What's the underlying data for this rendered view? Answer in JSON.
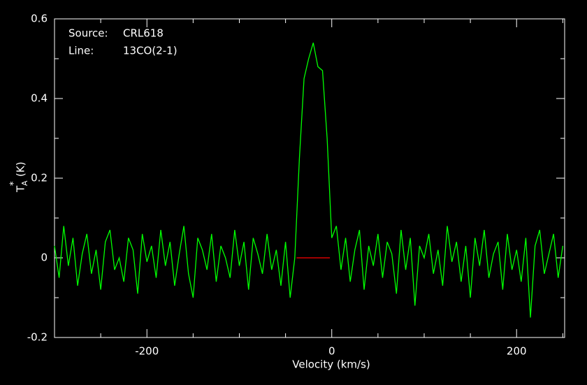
{
  "chart_data": {
    "type": "line",
    "xlabel": "Velocity (km/s)",
    "ylabel": {
      "text": "T",
      "sub": "A",
      "sup": "*",
      "unit": "(K)"
    },
    "annotations": [
      [
        "Source:",
        "CRL618"
      ],
      [
        "Line:",
        "13CO(2-1)"
      ]
    ],
    "xlim": [
      -300,
      252
    ],
    "ylim": [
      -0.2,
      0.6
    ],
    "xticks": [
      -200,
      0,
      200
    ],
    "yticks": [
      -0.2,
      0,
      0.2,
      0.4,
      0.6
    ],
    "xminorticks": [
      -250,
      -150,
      -100,
      -50,
      50,
      100,
      150,
      250
    ],
    "yminorticks": [
      -0.1,
      0.1,
      0.3,
      0.5
    ],
    "series": [
      {
        "color": "#00ff00",
        "x": [
          -300,
          -295,
          -290,
          -285,
          -280,
          -275,
          -270,
          -265,
          -260,
          -255,
          -250,
          -245,
          -240,
          -235,
          -230,
          -225,
          -220,
          -215,
          -210,
          -205,
          -200,
          -195,
          -190,
          -185,
          -180,
          -175,
          -170,
          -165,
          -160,
          -155,
          -150,
          -145,
          -140,
          -135,
          -130,
          -125,
          -120,
          -115,
          -110,
          -105,
          -100,
          -95,
          -90,
          -85,
          -80,
          -75,
          -70,
          -65,
          -60,
          -55,
          -50,
          -45,
          -40,
          -35,
          -30,
          -25,
          -20,
          -15,
          -10,
          -5,
          0,
          5,
          10,
          15,
          20,
          25,
          30,
          35,
          40,
          45,
          50,
          55,
          60,
          65,
          70,
          75,
          80,
          85,
          90,
          95,
          100,
          105,
          110,
          115,
          120,
          125,
          130,
          135,
          140,
          145,
          150,
          155,
          160,
          165,
          170,
          175,
          180,
          185,
          190,
          195,
          200,
          205,
          210,
          215,
          220,
          225,
          230,
          235,
          240,
          245,
          250
        ],
        "values": [
          0.03,
          -0.05,
          0.08,
          -0.02,
          0.05,
          -0.07,
          0.01,
          0.06,
          -0.04,
          0.02,
          -0.08,
          0.04,
          0.07,
          -0.03,
          0.0,
          -0.06,
          0.05,
          0.02,
          -0.09,
          0.06,
          -0.01,
          0.03,
          -0.05,
          0.07,
          -0.02,
          0.04,
          -0.07,
          0.01,
          0.08,
          -0.04,
          -0.1,
          0.05,
          0.02,
          -0.03,
          0.06,
          -0.06,
          0.03,
          0.0,
          -0.05,
          0.07,
          -0.02,
          0.04,
          -0.08,
          0.05,
          0.01,
          -0.04,
          0.06,
          -0.03,
          0.02,
          -0.07,
          0.04,
          -0.1,
          0.0,
          0.25,
          0.45,
          0.5,
          0.54,
          0.48,
          0.47,
          0.3,
          0.05,
          0.08,
          -0.03,
          0.05,
          -0.06,
          0.02,
          0.07,
          -0.08,
          0.03,
          -0.02,
          0.06,
          -0.05,
          0.04,
          0.01,
          -0.09,
          0.07,
          -0.03,
          0.05,
          -0.12,
          0.03,
          0.0,
          0.06,
          -0.04,
          0.02,
          -0.07,
          0.08,
          -0.01,
          0.04,
          -0.06,
          0.03,
          -0.1,
          0.05,
          -0.02,
          0.07,
          -0.05,
          0.01,
          0.04,
          -0.08,
          0.06,
          -0.03,
          0.02,
          -0.06,
          0.05,
          -0.15,
          0.03,
          0.07,
          -0.04,
          0.01,
          0.06,
          -0.05,
          0.03
        ]
      },
      {
        "color": "#ff0000",
        "x": [
          -38,
          -2
        ],
        "values": [
          0,
          0
        ]
      }
    ]
  }
}
